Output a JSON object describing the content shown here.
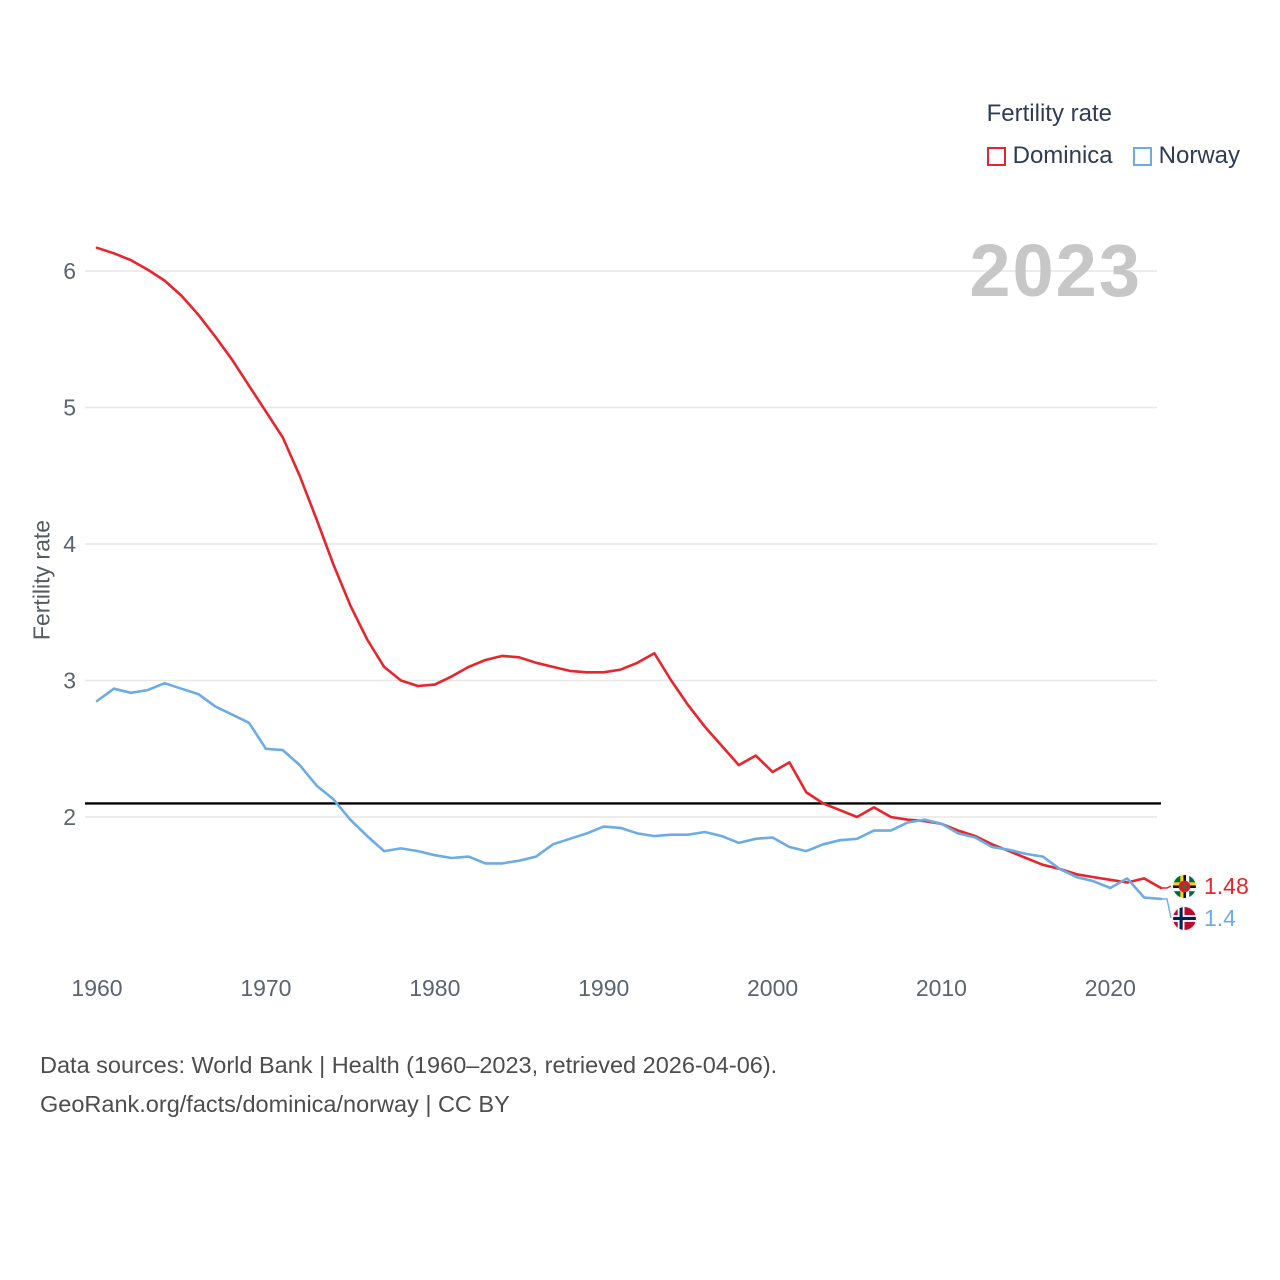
{
  "chart": {
    "watermark": "2023",
    "colors": {
      "dominica": "#e8242c",
      "norway": "#6cace4",
      "grid": "#e7e7e7",
      "reference": "#000000",
      "watermark": "#c7c7c7",
      "axis_text": "#5b6470",
      "legend_text": "#2e3d54",
      "footer_text": "#4d4d4d"
    }
  },
  "footer": {
    "line1": "Data sources: World Bank | Health (1960–2023, retrieved 2026-04-06).",
    "line2": "GeoRank.org/facts/dominica/norway | CC BY"
  },
  "chart_data": {
    "type": "line",
    "title": "Fertility rate",
    "xlabel": "",
    "ylabel": "Fertility rate",
    "x": [
      1960,
      1961,
      1962,
      1963,
      1964,
      1965,
      1966,
      1967,
      1968,
      1969,
      1970,
      1971,
      1972,
      1973,
      1974,
      1975,
      1976,
      1977,
      1978,
      1979,
      1980,
      1981,
      1982,
      1983,
      1984,
      1985,
      1986,
      1987,
      1988,
      1989,
      1990,
      1991,
      1992,
      1993,
      1994,
      1995,
      1996,
      1997,
      1998,
      1999,
      2000,
      2001,
      2002,
      2003,
      2004,
      2005,
      2006,
      2007,
      2008,
      2009,
      2010,
      2011,
      2012,
      2013,
      2014,
      2015,
      2016,
      2017,
      2018,
      2019,
      2020,
      2021,
      2022,
      2023
    ],
    "x_ticks": [
      1960,
      1970,
      1980,
      1990,
      2000,
      2010,
      2020
    ],
    "y_ticks": [
      2,
      3,
      4,
      5,
      6
    ],
    "xlim": [
      1960,
      2023
    ],
    "ylim": [
      1.3,
      6.3
    ],
    "grid": "horizontal",
    "legend_position": "top-right",
    "reference_line": 2.1,
    "series": [
      {
        "name": "Dominica",
        "color": "#e8242c",
        "end_label": "1.48",
        "values": [
          6.17,
          6.13,
          6.08,
          6.01,
          5.93,
          5.82,
          5.68,
          5.52,
          5.35,
          5.16,
          4.97,
          4.78,
          4.5,
          4.18,
          3.85,
          3.55,
          3.3,
          3.1,
          3.0,
          2.96,
          2.97,
          3.03,
          3.1,
          3.15,
          3.18,
          3.17,
          3.13,
          3.1,
          3.07,
          3.06,
          3.06,
          3.08,
          3.13,
          3.2,
          3.0,
          2.82,
          2.66,
          2.52,
          2.38,
          2.45,
          2.33,
          2.4,
          2.18,
          2.1,
          2.05,
          2.0,
          2.07,
          2.0,
          1.98,
          1.97,
          1.95,
          1.9,
          1.86,
          1.8,
          1.75,
          1.7,
          1.65,
          1.62,
          1.58,
          1.56,
          1.54,
          1.52,
          1.55,
          1.48
        ]
      },
      {
        "name": "Norway",
        "color": "#6cace4",
        "end_label": "1.4",
        "values": [
          2.85,
          2.94,
          2.91,
          2.93,
          2.98,
          2.94,
          2.9,
          2.81,
          2.75,
          2.69,
          2.5,
          2.49,
          2.38,
          2.23,
          2.13,
          1.98,
          1.86,
          1.75,
          1.77,
          1.75,
          1.72,
          1.7,
          1.71,
          1.66,
          1.66,
          1.68,
          1.71,
          1.8,
          1.84,
          1.88,
          1.93,
          1.92,
          1.88,
          1.86,
          1.87,
          1.87,
          1.89,
          1.86,
          1.81,
          1.84,
          1.85,
          1.78,
          1.75,
          1.8,
          1.83,
          1.84,
          1.9,
          1.9,
          1.96,
          1.98,
          1.95,
          1.88,
          1.85,
          1.78,
          1.76,
          1.73,
          1.71,
          1.62,
          1.56,
          1.53,
          1.48,
          1.55,
          1.41,
          1.4
        ]
      }
    ]
  }
}
